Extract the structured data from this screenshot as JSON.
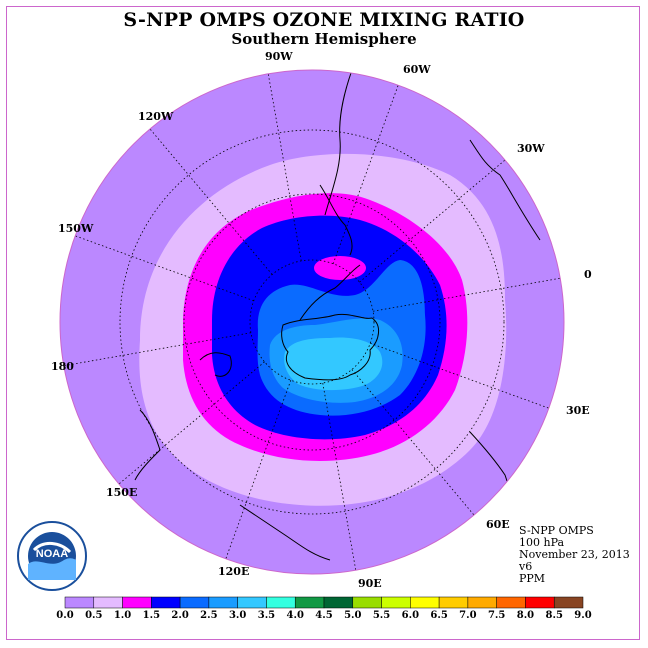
{
  "title": "S-NPP OMPS OZONE MIXING RATIO",
  "subtitle": "Southern Hemisphere",
  "longitude_labels": [
    "90W",
    "60W",
    "30W",
    "0",
    "30E",
    "60E",
    "90E",
    "120E",
    "150E",
    "180",
    "150W",
    "120W"
  ],
  "info": {
    "instrument": "S-NPP OMPS",
    "level": "100 hPa",
    "date": "November 23, 2013",
    "version": "v6",
    "units": "PPM"
  },
  "logo": {
    "text": "NOAA",
    "icon": "noaa-logo-icon"
  },
  "colorbar": {
    "ticks": [
      "0.0",
      "0.5",
      "1.0",
      "1.5",
      "2.0",
      "2.5",
      "3.0",
      "3.5",
      "4.0",
      "4.5",
      "5.0",
      "5.5",
      "6.0",
      "6.5",
      "7.0",
      "7.5",
      "8.0",
      "8.5",
      "9.0"
    ],
    "colors": [
      "#bb88ff",
      "#e4bbff",
      "#ff00ff",
      "#0000ff",
      "#0a6bff",
      "#1a9cff",
      "#33c8ff",
      "#33ffe0",
      "#119944",
      "#006633",
      "#99dd00",
      "#ccff00",
      "#ffff00",
      "#ffcc00",
      "#ffaa00",
      "#ff6600",
      "#ff0000",
      "#884422"
    ]
  },
  "colors": {
    "background_map": "#bb88ff",
    "frame": "#cc66cc"
  }
}
